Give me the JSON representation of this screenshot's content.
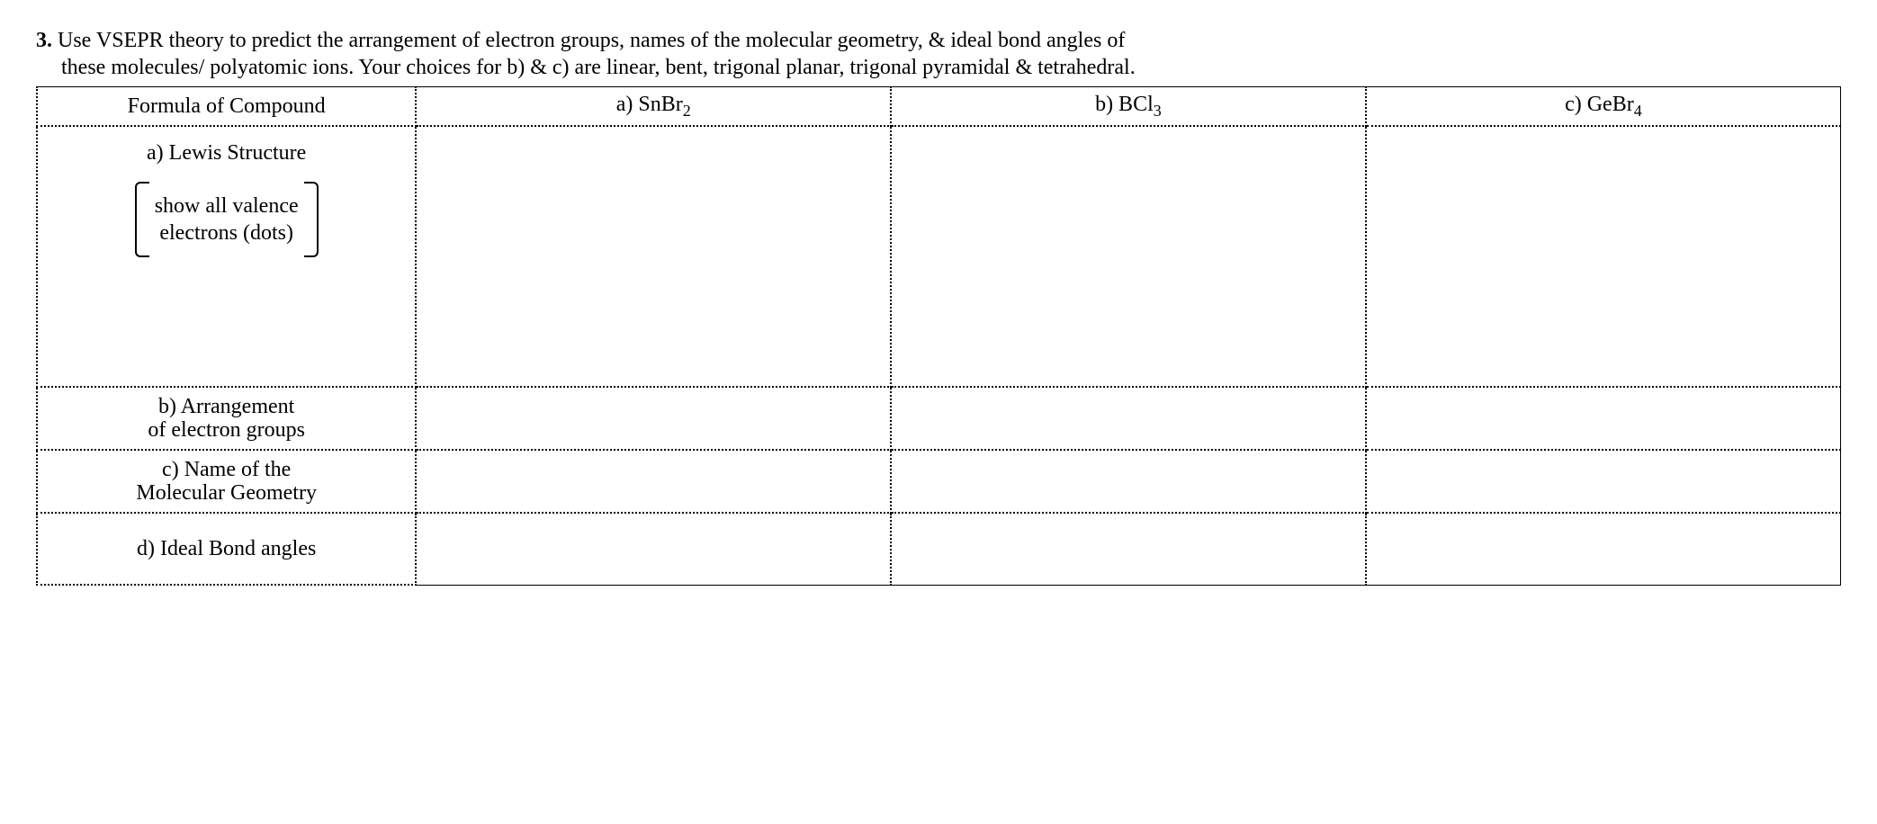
{
  "question": {
    "number": "3.",
    "line1": "Use VSEPR theory to predict the arrangement of electron groups, names of the molecular geometry, & ideal bond angles of",
    "line2": "these molecules/ polyatomic ions.  Your choices for b) & c) are linear, bent, trigonal planar, trigonal pyramidal & tetrahedral."
  },
  "table": {
    "header": {
      "label": "Formula of Compound",
      "a_prefix": "a) SnBr",
      "a_sub": "2",
      "b_prefix": "b) BCl",
      "b_sub": "3",
      "c_prefix": "c) GeBr",
      "c_sub": "4"
    },
    "rows": {
      "lewis": {
        "title": "a) Lewis Structure",
        "bracket_line1": "show all valence",
        "bracket_line2": "electrons (dots)"
      },
      "arrangement": {
        "title_l1": "b) Arrangement",
        "title_l2": "of electron groups"
      },
      "geometry": {
        "title_l1": "c) Name of the",
        "title_l2": "Molecular Geometry"
      },
      "angles": {
        "title": "d) Ideal Bond angles"
      }
    }
  }
}
